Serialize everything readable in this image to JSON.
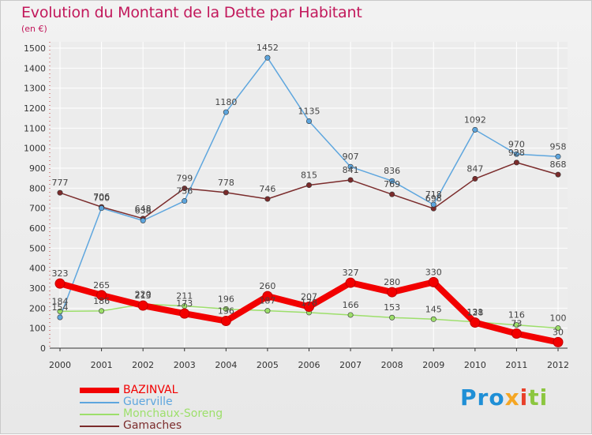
{
  "chart_data": {
    "type": "line",
    "title": "Evolution du Montant de la Dette par Habitant",
    "subtitle": "(en €)",
    "x": [
      "2000",
      "2001",
      "2002",
      "2003",
      "2004",
      "2005",
      "2006",
      "2007",
      "2008",
      "2009",
      "2010",
      "2011",
      "2012"
    ],
    "ylim": [
      0,
      1500
    ],
    "yticks": [
      0,
      100,
      200,
      300,
      400,
      500,
      600,
      700,
      800,
      900,
      1000,
      1100,
      1200,
      1300,
      1400,
      1500
    ],
    "grid": true,
    "legend_placement": "bottom-left",
    "series": [
      {
        "name": "Gamaches",
        "color": "#7b2c2c",
        "width": 1.5,
        "values": [
          777,
          706,
          648,
          799,
          778,
          746,
          815,
          841,
          769,
          698,
          847,
          928,
          868
        ]
      },
      {
        "name": "Guerville",
        "color": "#5ea6de",
        "width": 1.5,
        "values": [
          154,
          700,
          638,
          736,
          1180,
          1452,
          1135,
          907,
          836,
          718,
          1092,
          970,
          958
        ]
      },
      {
        "name": "Monchaux-Soreng",
        "color": "#9ddf6b",
        "width": 1.5,
        "values": [
          184,
          186,
          220,
          211,
          196,
          187,
          178,
          166,
          153,
          145,
          131,
          116,
          100
        ]
      },
      {
        "name": "BAZINVAL",
        "color": "#f20000",
        "width": 8,
        "values": [
          323,
          265,
          213,
          173,
          136,
          260,
          207,
          327,
          280,
          330,
          128,
          73,
          30
        ]
      }
    ]
  },
  "legend": [
    {
      "name": "BAZINVAL",
      "color": "#f20000",
      "thick": true
    },
    {
      "name": "Guerville",
      "color": "#5ea6de",
      "thick": false
    },
    {
      "name": "Monchaux-Soreng",
      "color": "#9ddf6b",
      "thick": false
    },
    {
      "name": "Gamaches",
      "color": "#7b2c2c",
      "thick": false
    }
  ],
  "logo": {
    "p1": "Pro",
    "p2": "x",
    "p3": "i",
    "p4": "ti"
  }
}
